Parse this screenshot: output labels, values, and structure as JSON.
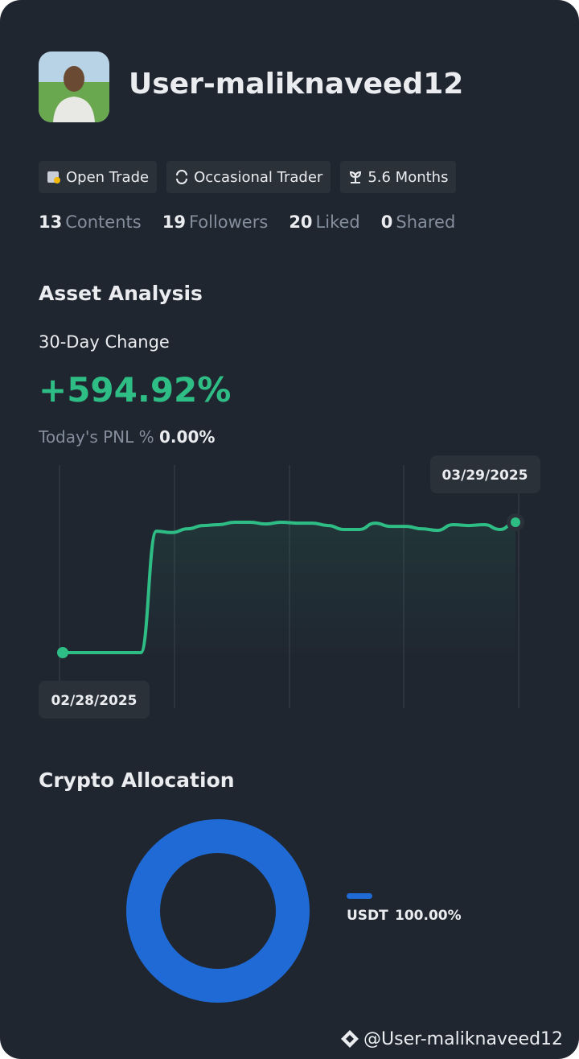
{
  "profile": {
    "username": "User-maliknaveed12",
    "badges": [
      "Open Trade",
      "Occasional Trader",
      "5.6 Months"
    ],
    "stats": [
      {
        "value": 13,
        "label": "Contents"
      },
      {
        "value": 19,
        "label": "Followers"
      },
      {
        "value": 20,
        "label": "Liked"
      },
      {
        "value": 0,
        "label": "Shared"
      }
    ]
  },
  "asset_analysis": {
    "title": "Asset Analysis",
    "change_label": "30-Day Change",
    "change_value": "+594.92%",
    "pnl_label": "Today's PNL %",
    "pnl_value": "0.00%"
  },
  "crypto_allocation": {
    "title": "Crypto Allocation"
  },
  "watermark": "@User-maliknaveed12",
  "chart_data": [
    {
      "type": "line",
      "color": "#2ebd85",
      "categories": [
        "02/28/2025",
        null,
        null,
        null,
        null,
        null,
        null,
        null,
        null,
        null,
        null,
        null,
        null,
        null,
        null,
        null,
        null,
        null,
        null,
        null,
        null,
        null,
        null,
        null,
        null,
        null,
        null,
        null,
        null,
        "03/29/2025"
      ],
      "values": [
        0,
        0,
        0,
        0,
        0,
        0,
        554,
        548,
        565,
        580,
        584,
        595,
        595,
        587,
        595,
        591,
        591,
        580,
        562,
        562,
        591,
        576,
        576,
        565,
        558,
        584,
        580,
        584,
        562,
        594.92
      ]
    },
    {
      "type": "pie",
      "categories": [
        "USDT"
      ],
      "values": [
        100
      ],
      "value_labels": [
        "100.00%"
      ],
      "colors": [
        "#1f6ad4"
      ]
    }
  ]
}
